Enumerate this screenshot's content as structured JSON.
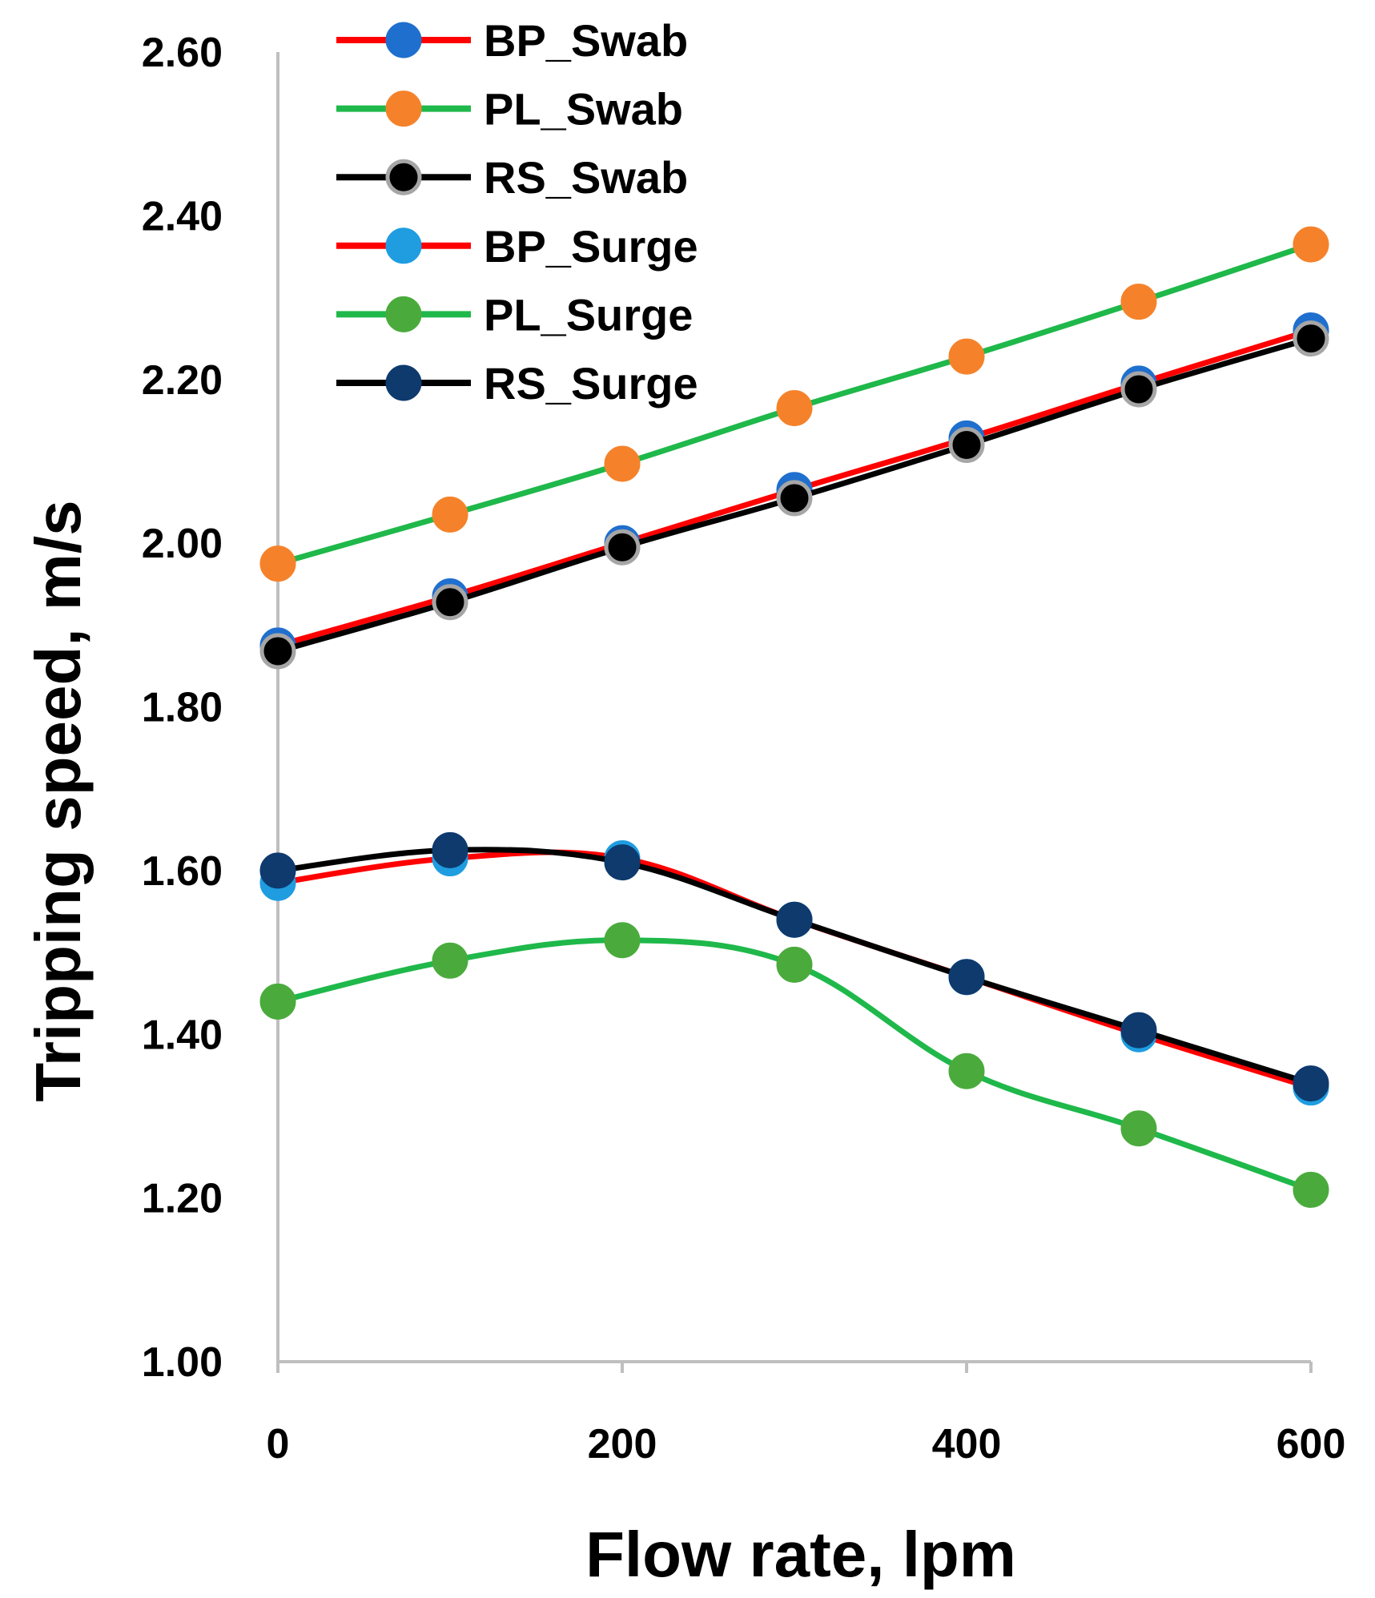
{
  "chart_data": {
    "type": "line",
    "title": "",
    "xlabel": "Flow rate, lpm",
    "ylabel": "Tripping speed, m/s",
    "xlim": [
      0,
      600
    ],
    "ylim": [
      1.0,
      2.6
    ],
    "xticks": [
      0,
      200,
      400,
      600
    ],
    "xtick_labels": [
      "0",
      "200",
      "400",
      "600"
    ],
    "yticks": [
      1.0,
      1.2,
      1.4,
      1.6,
      1.8,
      2.0,
      2.2,
      2.4,
      2.6
    ],
    "ytick_labels": [
      "1.00",
      "1.20",
      "1.40",
      "1.60",
      "1.80",
      "2.00",
      "2.20",
      "2.40",
      "2.60"
    ],
    "grid": false,
    "legend_position": "top-left",
    "x": [
      0,
      100,
      200,
      300,
      400,
      500,
      600
    ],
    "series": [
      {
        "name": "BP_Swab",
        "line_color": "#ff0000",
        "marker_color": "#1f6fce",
        "marker_edge": "#1f6fce",
        "values": [
          1.875,
          1.935,
          2.0,
          2.065,
          2.128,
          2.195,
          2.26
        ]
      },
      {
        "name": "PL_Swab",
        "line_color": "#1fb84a",
        "marker_color": "#f5822a",
        "marker_edge": "#f5822a",
        "values": [
          1.975,
          2.035,
          2.097,
          2.165,
          2.228,
          2.295,
          2.365
        ]
      },
      {
        "name": "RS_Swab",
        "line_color": "#000000",
        "marker_color": "#000000",
        "marker_edge": "#a6a6a6",
        "values": [
          1.868,
          1.928,
          1.995,
          2.055,
          2.12,
          2.188,
          2.25
        ]
      },
      {
        "name": "BP_Surge",
        "line_color": "#ff0000",
        "marker_color": "#1f9de0",
        "marker_edge": "#1f9de0",
        "values": [
          1.585,
          1.615,
          1.615,
          1.54,
          1.47,
          1.4,
          1.335
        ]
      },
      {
        "name": "PL_Surge",
        "line_color": "#1fb84a",
        "marker_color": "#4aab3c",
        "marker_edge": "#4aab3c",
        "values": [
          1.44,
          1.49,
          1.515,
          1.485,
          1.355,
          1.285,
          1.21
        ]
      },
      {
        "name": "RS_Surge",
        "line_color": "#000000",
        "marker_color": "#0e3a6e",
        "marker_edge": "#0e3a6e",
        "values": [
          1.6,
          1.625,
          1.61,
          1.54,
          1.47,
          1.405,
          1.34
        ]
      }
    ]
  }
}
